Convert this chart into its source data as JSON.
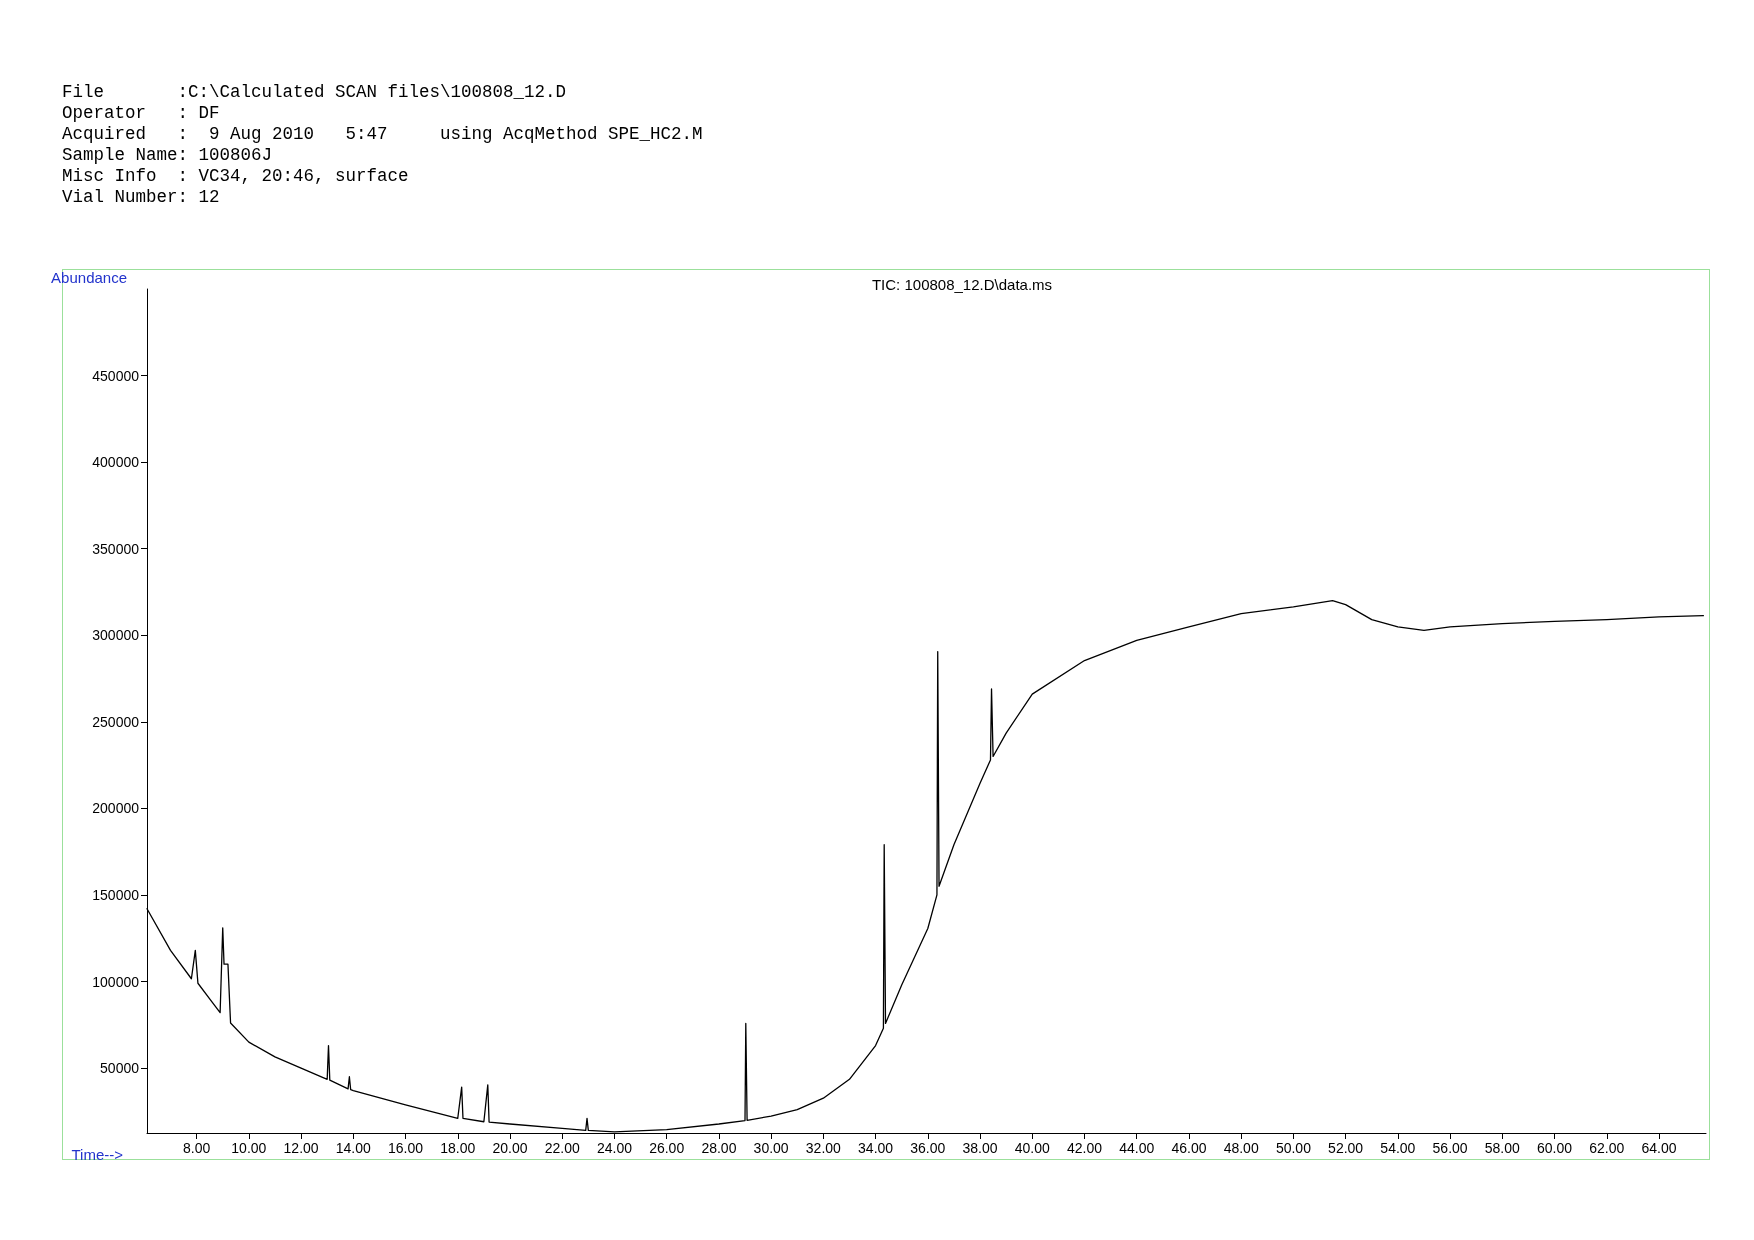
{
  "chart_data": {
    "type": "line",
    "title": "TIC: 100808_12.D\\data.ms",
    "xlabel": "Time-->",
    "ylabel": "Abundance",
    "annotations": [
      "File       :C:\\Calculated SCAN files\\100808_12.D",
      "Operator   : DF",
      "Acquired   :  9 Aug 2010   5:47     using AcqMethod SPE_HC2.M",
      "Sample Name: 100806J",
      "Misc Info  : VC34, 20:46, surface",
      "Vial Number: 12"
    ],
    "series": [
      {
        "color": "#000000",
        "x": [
          6.1,
          7,
          7.8,
          7.95,
          8.05,
          8.5,
          8.9,
          9.0,
          9.05,
          9.2,
          9.3,
          10,
          11,
          12,
          13,
          13.05,
          13.1,
          13.8,
          13.85,
          13.9,
          14,
          16,
          18,
          18.15,
          18.2,
          19,
          19.15,
          19.2,
          20,
          22,
          22.9,
          22.95,
          23,
          24,
          26,
          28,
          29,
          29.03,
          29.08,
          30,
          31,
          32,
          33,
          34,
          34.3,
          34.33,
          34.38,
          35,
          36,
          36.35,
          36.38,
          36.43,
          37,
          38,
          38.4,
          38.44,
          38.5,
          39,
          40,
          42,
          44,
          46,
          48,
          50,
          51.5,
          52,
          53,
          54,
          55,
          56,
          58,
          60,
          62,
          64,
          65.7
        ],
        "values": [
          142000,
          118000,
          101600,
          118000,
          99000,
          90000,
          82000,
          131000,
          110000,
          110000,
          76000,
          65000,
          56500,
          50000,
          43500,
          63000,
          43000,
          38000,
          45000,
          37500,
          37000,
          28700,
          21000,
          39000,
          21000,
          19000,
          40300,
          18800,
          17700,
          15200,
          14000,
          21000,
          14000,
          13200,
          14500,
          17700,
          19700,
          75800,
          19800,
          22300,
          26000,
          32600,
          43500,
          63000,
          73000,
          179000,
          75800,
          98000,
          130600,
          150000,
          290600,
          155000,
          179000,
          214500,
          228000,
          269000,
          230000,
          243500,
          266000,
          285400,
          297000,
          304800,
          312500,
          316400,
          320000,
          317700,
          309000,
          304800,
          302800,
          304800,
          306700,
          308000,
          309000,
          310600,
          311300
        ]
      }
    ],
    "xlim": [
      6.1,
      65.8
    ],
    "xticks": [
      {
        "value": 8,
        "label": "8.00"
      },
      {
        "value": 10,
        "label": "10.00"
      },
      {
        "value": 12,
        "label": "12.00"
      },
      {
        "value": 14,
        "label": "14.00"
      },
      {
        "value": 16,
        "label": "16.00"
      },
      {
        "value": 18,
        "label": "18.00"
      },
      {
        "value": 20,
        "label": "20.00"
      },
      {
        "value": 22,
        "label": "22.00"
      },
      {
        "value": 24,
        "label": "24.00"
      },
      {
        "value": 26,
        "label": "26.00"
      },
      {
        "value": 28,
        "label": "28.00"
      },
      {
        "value": 30,
        "label": "30.00"
      },
      {
        "value": 32,
        "label": "32.00"
      },
      {
        "value": 34,
        "label": "34.00"
      },
      {
        "value": 36,
        "label": "36.00"
      },
      {
        "value": 38,
        "label": "38.00"
      },
      {
        "value": 40,
        "label": "40.00"
      },
      {
        "value": 42,
        "label": "42.00"
      },
      {
        "value": 44,
        "label": "44.00"
      },
      {
        "value": 46,
        "label": "46.00"
      },
      {
        "value": 48,
        "label": "48.00"
      },
      {
        "value": 50,
        "label": "50.00"
      },
      {
        "value": 52,
        "label": "52.00"
      },
      {
        "value": 54,
        "label": "54.00"
      },
      {
        "value": 56,
        "label": "56.00"
      },
      {
        "value": 58,
        "label": "58.00"
      },
      {
        "value": 60,
        "label": "60.00"
      },
      {
        "value": 62,
        "label": "62.00"
      },
      {
        "value": 64,
        "label": "64.00"
      }
    ],
    "ylim": [
      12500,
      500000
    ],
    "yticks": [
      50000,
      100000,
      150000,
      200000,
      250000,
      300000,
      350000,
      400000,
      450000
    ],
    "grid": false,
    "marker": "none",
    "line_style": "solid"
  }
}
